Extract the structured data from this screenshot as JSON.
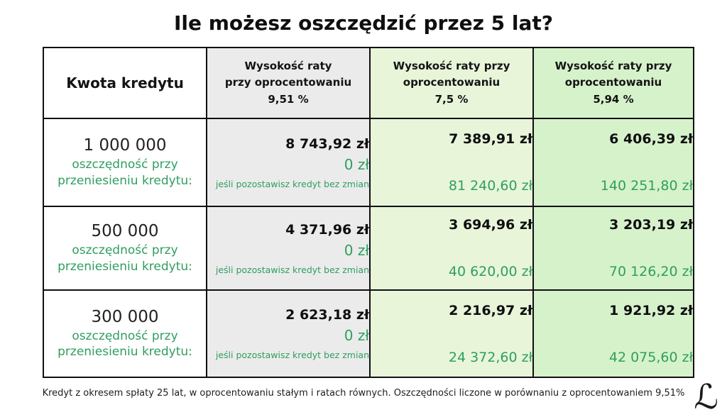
{
  "title": "Ile możesz oszczędzić przez 5 lat?",
  "table": {
    "headers": [
      {
        "lines": [
          "Kwota kredytu"
        ]
      },
      {
        "lines": [
          "Wysokość raty",
          "przy oprocentowaniu",
          "9,51 %"
        ]
      },
      {
        "lines": [
          "Wysokość raty przy",
          "oprocentowaniu",
          "7,5 %"
        ]
      },
      {
        "lines": [
          "Wysokość raty przy",
          "oprocentowaniu",
          "5,94 %"
        ]
      }
    ],
    "rows": [
      {
        "amount": "1 000 000",
        "savings_label": [
          "oszczędność przy",
          "przeniesieniu kredytu:"
        ],
        "baseline": {
          "payment": "8 743,92 zł",
          "savings": "0 zł",
          "note": "jeśli pozostawisz kredyt bez zmian"
        },
        "rate75": {
          "payment": "7 389,91 zł",
          "savings": "81 240,60 zł"
        },
        "rate594": {
          "payment": "6 406,39 zł",
          "savings": "140 251,80 zł"
        }
      },
      {
        "amount": "500 000",
        "savings_label": [
          "oszczędność przy",
          "przeniesieniu kredytu:"
        ],
        "baseline": {
          "payment": "4 371,96 zł",
          "savings": "0 zł",
          "note": "jeśli pozostawisz kredyt bez zmian"
        },
        "rate75": {
          "payment": "3 694,96 zł",
          "savings": "40 620,00 zł"
        },
        "rate594": {
          "payment": "3 203,19 zł",
          "savings": "70 126,20 zł"
        }
      },
      {
        "amount": "300 000",
        "savings_label": [
          "oszczędność przy",
          "przeniesieniu kredytu:"
        ],
        "baseline": {
          "payment": "2 623,18 zł",
          "savings": "0 zł",
          "note": "jeśli pozostawisz kredyt bez zmian"
        },
        "rate75": {
          "payment": "2 216,97 zł",
          "savings": "24 372,60 zł"
        },
        "rate594": {
          "payment": "1 921,92 zł",
          "savings": "42 075,60 zł"
        }
      }
    ]
  },
  "footer": {
    "note": "Kredyt z okresem spłaty 25 lat, w oprocentowaniu stałym i ratach równych. Oszczędności liczone w porównaniu z oprocentowaniem 9,51%"
  },
  "logo": {
    "glyph": "ℒ"
  },
  "colors": {
    "accent_green_text": "#2f9e5f",
    "column_gray_bg": "#ebebeb",
    "column_light_green_bg": "#e8f5d9",
    "column_green_bg": "#d6f2cb",
    "border": "#101010"
  },
  "chart_data": {
    "type": "table",
    "title": "Ile możesz oszczędzić przez 5 lat?",
    "columns": [
      "Kwota kredytu",
      "Wysokość raty przy oprocentowaniu 9,51 %",
      "Wysokość raty przy oprocentowaniu 7,5 %",
      "Wysokość raty przy oprocentowaniu 5,94 %"
    ],
    "rows": [
      {
        "kwota_kredytu": 1000000,
        "rata_9_51": 8743.92,
        "oszczednosc_9_51": 0,
        "rata_7_5": 7389.91,
        "oszczednosc_7_5": 81240.6,
        "rata_5_94": 6406.39,
        "oszczednosc_5_94": 140251.8
      },
      {
        "kwota_kredytu": 500000,
        "rata_9_51": 4371.96,
        "oszczednosc_9_51": 0,
        "rata_7_5": 3694.96,
        "oszczednosc_7_5": 40620.0,
        "rata_5_94": 3203.19,
        "oszczednosc_5_94": 70126.2
      },
      {
        "kwota_kredytu": 300000,
        "rata_9_51": 2623.18,
        "oszczednosc_9_51": 0,
        "rata_7_5": 2216.97,
        "oszczednosc_7_5": 24372.6,
        "rata_5_94": 1921.92,
        "oszczednosc_5_94": 42075.6
      }
    ],
    "footnote": "Kredyt z okresem spłaty 25 lat, w oprocentowaniu stałym i ratach równych. Oszczędności liczone w porównaniu z oprocentowaniem 9,51%"
  }
}
